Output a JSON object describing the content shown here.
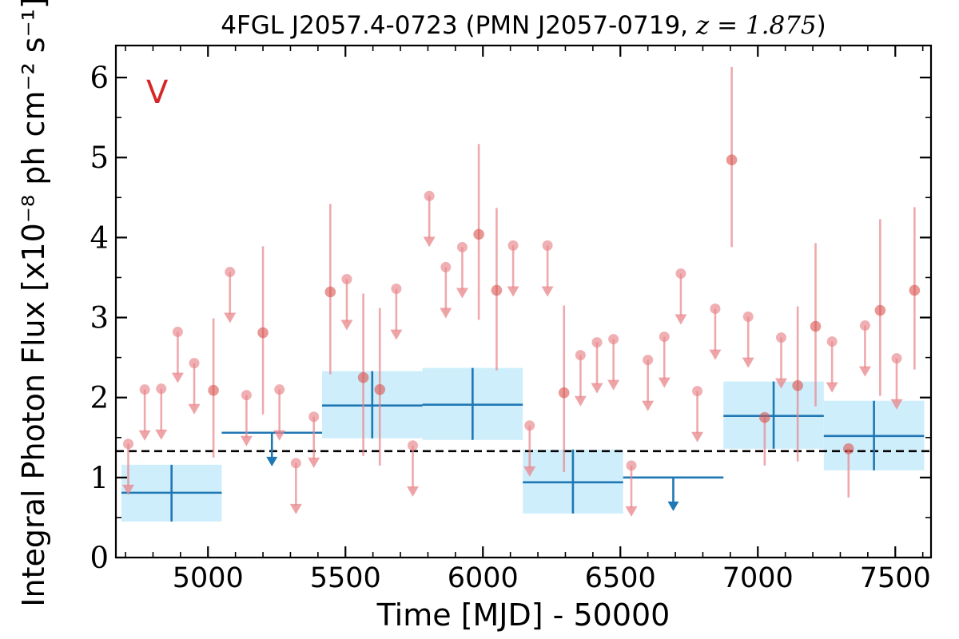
{
  "chart_data": {
    "type": "scatter",
    "title": "4FGL J2057.4-0723 (PMN J2057-0719, z = 1.875)",
    "title_parts": {
      "main": "4FGL J2057.4-0723 (PMN J2057-0719, ",
      "math": "z = 1.875",
      "close": ")"
    },
    "xlabel": "Time [MJD] - 50000",
    "ylabel": "Integral Photon Flux [x10⁻⁸ ph cm⁻² s⁻¹]",
    "panel_label": "V",
    "xlim": [
      4665,
      7630
    ],
    "ylim": [
      0,
      6.4
    ],
    "x_ticks": [
      5000,
      5500,
      6000,
      6500,
      7000,
      7500
    ],
    "x_tick_labels": [
      "5000",
      "5500",
      "6000",
      "6500",
      "7000",
      "7500"
    ],
    "y_ticks": [
      0,
      1,
      2,
      3,
      4,
      5,
      6
    ],
    "y_tick_labels": [
      "0",
      "1",
      "2",
      "3",
      "4",
      "5",
      "6"
    ],
    "grid": false,
    "mean_flux": 1.33,
    "colors": {
      "short_bins": "#e8858a",
      "long_bins_line": "#1f77b4",
      "long_bins_band": "#cfeefb",
      "mean_line": "#000000",
      "panel_label": "#d62728"
    },
    "short_bin_detections": [
      {
        "x": 5020,
        "y": 2.09,
        "ylo": 1.25,
        "yhi": 2.99
      },
      {
        "x": 5200,
        "y": 2.81,
        "ylo": 1.79,
        "yhi": 3.89
      },
      {
        "x": 5445,
        "y": 3.32,
        "ylo": 2.29,
        "yhi": 4.42
      },
      {
        "x": 5565,
        "y": 2.25,
        "ylo": 1.27,
        "yhi": 3.3
      },
      {
        "x": 5625,
        "y": 2.1,
        "ylo": 1.15,
        "yhi": 3.12
      },
      {
        "x": 5985,
        "y": 4.04,
        "ylo": 2.97,
        "yhi": 5.17
      },
      {
        "x": 6050,
        "y": 3.34,
        "ylo": 2.34,
        "yhi": 4.37
      },
      {
        "x": 6295,
        "y": 2.06,
        "ylo": 1.07,
        "yhi": 3.15
      },
      {
        "x": 6905,
        "y": 4.97,
        "ylo": 3.88,
        "yhi": 6.13
      },
      {
        "x": 7025,
        "y": 1.75,
        "ylo": 1.15,
        "yhi": 1.75
      },
      {
        "x": 7145,
        "y": 2.15,
        "ylo": 1.2,
        "yhi": 3.14
      },
      {
        "x": 7210,
        "y": 2.89,
        "ylo": 1.89,
        "yhi": 3.93
      },
      {
        "x": 7330,
        "y": 1.36,
        "ylo": 0.75,
        "yhi": 1.36
      },
      {
        "x": 7445,
        "y": 3.09,
        "ylo": 2.02,
        "yhi": 4.23
      },
      {
        "x": 7570,
        "y": 3.34,
        "ylo": 2.35,
        "yhi": 4.38
      }
    ],
    "short_bin_upper_limits": [
      {
        "x": 4710,
        "y": 1.42
      },
      {
        "x": 4770,
        "y": 2.1
      },
      {
        "x": 4830,
        "y": 2.11
      },
      {
        "x": 4890,
        "y": 2.82
      },
      {
        "x": 4950,
        "y": 2.43
      },
      {
        "x": 5080,
        "y": 3.57
      },
      {
        "x": 5140,
        "y": 2.03
      },
      {
        "x": 5260,
        "y": 2.1
      },
      {
        "x": 5320,
        "y": 1.18
      },
      {
        "x": 5385,
        "y": 1.76
      },
      {
        "x": 5505,
        "y": 3.48
      },
      {
        "x": 5685,
        "y": 3.36
      },
      {
        "x": 5745,
        "y": 1.4
      },
      {
        "x": 5805,
        "y": 4.52
      },
      {
        "x": 5865,
        "y": 3.63
      },
      {
        "x": 5925,
        "y": 3.88
      },
      {
        "x": 6110,
        "y": 3.9
      },
      {
        "x": 6170,
        "y": 1.65
      },
      {
        "x": 6235,
        "y": 3.9
      },
      {
        "x": 6355,
        "y": 2.53
      },
      {
        "x": 6415,
        "y": 2.69
      },
      {
        "x": 6475,
        "y": 2.73
      },
      {
        "x": 6540,
        "y": 1.15
      },
      {
        "x": 6600,
        "y": 2.47
      },
      {
        "x": 6660,
        "y": 2.76
      },
      {
        "x": 6720,
        "y": 3.55
      },
      {
        "x": 6780,
        "y": 2.08
      },
      {
        "x": 6845,
        "y": 3.11
      },
      {
        "x": 6965,
        "y": 3.01
      },
      {
        "x": 7085,
        "y": 2.75
      },
      {
        "x": 7270,
        "y": 2.7
      },
      {
        "x": 7390,
        "y": 2.9
      },
      {
        "x": 7505,
        "y": 2.49
      }
    ],
    "long_bin_detections": [
      {
        "x0": 4685,
        "x1": 5050,
        "y": 0.81,
        "ylo": 0.45,
        "yhi": 1.16
      },
      {
        "x0": 5415,
        "x1": 5780,
        "y": 1.9,
        "ylo": 1.49,
        "yhi": 2.33
      },
      {
        "x0": 5780,
        "x1": 6145,
        "y": 1.91,
        "ylo": 1.47,
        "yhi": 2.37
      },
      {
        "x0": 6145,
        "x1": 6510,
        "y": 0.94,
        "ylo": 0.55,
        "yhi": 1.35
      },
      {
        "x0": 6875,
        "x1": 7240,
        "y": 1.77,
        "ylo": 1.36,
        "yhi": 2.2
      },
      {
        "x0": 7240,
        "x1": 7605,
        "y": 1.52,
        "ylo": 1.09,
        "yhi": 1.96
      }
    ],
    "long_bin_upper_limits": [
      {
        "x0": 5050,
        "x1": 5415,
        "y": 1.56
      },
      {
        "x0": 6510,
        "x1": 6875,
        "y": 1.0
      }
    ]
  }
}
